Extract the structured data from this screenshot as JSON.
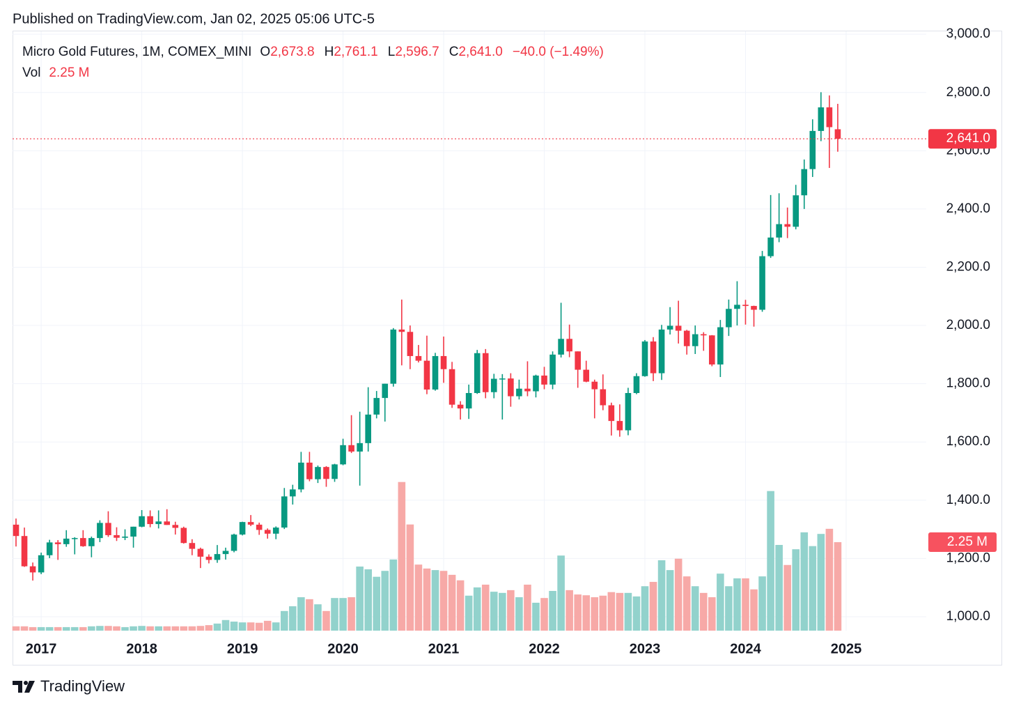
{
  "header": {
    "published": "Published on TradingView.com, Jan 02, 2025 05:06 UTC-5"
  },
  "footer": {
    "brand": "TradingView"
  },
  "chart_data": {
    "type": "candlestick",
    "title": "Micro Gold Futures, 1M, COMEX_MINI",
    "legend_keys": {
      "open": "O",
      "high": "H",
      "low": "L",
      "close": "C"
    },
    "legend": {
      "open": "2,673.8",
      "high": "2,761.1",
      "low": "2,596.7",
      "close": "2,641.0",
      "change": "−40.0 (−1.49%)"
    },
    "volume_title": "Vol",
    "volume_label": "2.25 M",
    "up_color": "#089981",
    "down_color": "#f23645",
    "volume_up_color": "#92d2cc",
    "volume_down_color": "#f7a9a7",
    "grid": true,
    "categories": [
      null,
      null,
      null,
      "2017",
      null,
      null,
      null,
      null,
      null,
      null,
      null,
      null,
      null,
      null,
      null,
      "2018",
      null,
      null,
      null,
      null,
      null,
      null,
      null,
      null,
      null,
      null,
      null,
      "2019",
      null,
      null,
      null,
      null,
      null,
      null,
      null,
      null,
      null,
      null,
      null,
      "2020",
      null,
      null,
      null,
      null,
      null,
      null,
      null,
      null,
      null,
      null,
      null,
      "2021",
      null,
      null,
      null,
      null,
      null,
      null,
      null,
      null,
      null,
      null,
      null,
      "2022",
      null,
      null,
      null,
      null,
      null,
      null,
      null,
      null,
      null,
      null,
      null,
      "2023",
      null,
      null,
      null,
      null,
      null,
      null,
      null,
      null,
      null,
      null,
      null,
      "2024",
      null,
      null,
      null,
      null,
      null,
      null,
      null,
      null,
      null,
      null,
      null,
      "2025"
    ],
    "open": [
      1316,
      1277,
      1173,
      1152,
      1211,
      1255,
      1249,
      1268,
      1270,
      1242,
      1270,
      1322,
      1280,
      1271,
      1275,
      1309,
      1345,
      1318,
      1327,
      1315,
      1305,
      1253,
      1233,
      1206,
      1195,
      1215,
      1226,
      1282,
      1325,
      1316,
      1298,
      1285,
      1306,
      1413,
      1437,
      1529,
      1472,
      1514,
      1473,
      1523,
      1589,
      1567,
      1596,
      1694,
      1751,
      1800,
      1986,
      1978,
      1895,
      1879,
      1780,
      1895,
      1850,
      1728,
      1715,
      1768,
      1905,
      1771,
      1817,
      1818,
      1757,
      1783,
      1774,
      1828,
      1797,
      1900,
      1954,
      1911,
      1848,
      1807,
      1781,
      1726,
      1672,
      1640,
      1768,
      1826,
      1945,
      1836,
      1986,
      1999,
      1982,
      1929,
      1970,
      1966,
      1866,
      1994,
      2057,
      2071,
      2067,
      2054,
      2238,
      2302,
      2348,
      2339,
      2447,
      2537,
      2668,
      2749,
      2673.8,
      null
    ],
    "high": [
      1337,
      1306,
      1186,
      1220,
      1264,
      1263,
      1297,
      1273,
      1297,
      1275,
      1331,
      1362,
      1307,
      1300,
      1309,
      1366,
      1365,
      1365,
      1369,
      1326,
      1309,
      1266,
      1237,
      1214,
      1246,
      1237,
      1285,
      1326,
      1349,
      1323,
      1303,
      1310,
      1442,
      1453,
      1566,
      1566,
      1519,
      1517,
      1525,
      1611,
      1692,
      1704,
      1788,
      1775,
      1800,
      1991,
      2089,
      2000,
      1933,
      1965,
      1906,
      1962,
      1875,
      1740,
      1797,
      1916,
      1919,
      1834,
      1833,
      1836,
      1814,
      1877,
      1831,
      1858,
      1911,
      2078,
      2003,
      1911,
      1879,
      1814,
      1832,
      1735,
      1729,
      1786,
      1836,
      1950,
      1960,
      2002,
      2063,
      2085,
      1985,
      2000,
      1977,
      1967,
      2019,
      2089,
      2152,
      2088,
      2068,
      2256,
      2448,
      2454,
      2405,
      2483,
      2570,
      2708,
      2801,
      2790,
      2761.1,
      null
    ],
    "low": [
      1241,
      1171,
      1124,
      1146,
      1201,
      1195,
      1240,
      1214,
      1240,
      1204,
      1256,
      1274,
      1260,
      1263,
      1237,
      1307,
      1307,
      1303,
      1315,
      1282,
      1251,
      1211,
      1167,
      1183,
      1185,
      1196,
      1221,
      1279,
      1311,
      1281,
      1268,
      1266,
      1301,
      1385,
      1427,
      1465,
      1459,
      1446,
      1463,
      1520,
      1562,
      1450,
      1567,
      1681,
      1670,
      1790,
      1863,
      1850,
      1873,
      1764,
      1776,
      1803,
      1717,
      1677,
      1679,
      1765,
      1750,
      1750,
      1677,
      1721,
      1746,
      1757,
      1753,
      1781,
      1781,
      1890,
      1891,
      1786,
      1805,
      1681,
      1709,
      1622,
      1618,
      1623,
      1764,
      1824,
      1809,
      1813,
      1969,
      1938,
      1900,
      1902,
      1913,
      1860,
      1823,
      1964,
      2000,
      2003,
      1996,
      2047,
      2232,
      2286,
      2300,
      2330,
      2400,
      2510,
      2633,
      2541,
      2596.7,
      null
    ],
    "close": [
      1277,
      1173,
      1152,
      1211,
      1255,
      1249,
      1268,
      1270,
      1242,
      1270,
      1322,
      1280,
      1271,
      1275,
      1309,
      1345,
      1318,
      1327,
      1315,
      1305,
      1253,
      1233,
      1206,
      1195,
      1215,
      1226,
      1282,
      1325,
      1316,
      1298,
      1285,
      1306,
      1413,
      1437,
      1529,
      1472,
      1514,
      1473,
      1523,
      1589,
      1567,
      1596,
      1694,
      1751,
      1800,
      1986,
      1978,
      1895,
      1879,
      1780,
      1895,
      1850,
      1728,
      1715,
      1768,
      1905,
      1771,
      1817,
      1818,
      1757,
      1783,
      1774,
      1828,
      1797,
      1900,
      1954,
      1911,
      1848,
      1807,
      1781,
      1726,
      1672,
      1640,
      1768,
      1826,
      1945,
      1836,
      1986,
      1999,
      1982,
      1929,
      1970,
      1966,
      1866,
      1994,
      2057,
      2071,
      2067,
      2054,
      2238,
      2302,
      2348,
      2339,
      2447,
      2537,
      2668,
      2749,
      2681,
      2641,
      null
    ],
    "volume": [
      0.11,
      0.11,
      0.09,
      0.09,
      0.09,
      0.09,
      0.09,
      0.09,
      0.09,
      0.11,
      0.12,
      0.12,
      0.11,
      0.09,
      0.11,
      0.12,
      0.11,
      0.11,
      0.11,
      0.11,
      0.11,
      0.11,
      0.12,
      0.14,
      0.18,
      0.27,
      0.23,
      0.21,
      0.21,
      0.2,
      0.25,
      0.21,
      0.5,
      0.62,
      0.85,
      0.8,
      0.67,
      0.5,
      0.83,
      0.83,
      0.85,
      1.63,
      1.56,
      1.37,
      1.52,
      1.81,
      3.78,
      2.7,
      1.68,
      1.58,
      1.54,
      1.52,
      1.42,
      1.28,
      0.89,
      1.1,
      1.17,
      0.99,
      0.96,
      1.03,
      0.85,
      1.17,
      0.71,
      0.83,
      1.01,
      1.91,
      1.03,
      0.92,
      0.9,
      0.85,
      0.89,
      0.98,
      0.96,
      0.96,
      0.87,
      1.13,
      1.24,
      1.79,
      1.54,
      1.83,
      1.38,
      1.13,
      0.96,
      0.85,
      1.45,
      1.13,
      1.33,
      1.33,
      1.05,
      1.38,
      3.55,
      2.18,
      1.67,
      2.07,
      2.5,
      2.15,
      2.46,
      2.59,
      2.25,
      null
    ],
    "ylim": [
      952,
      3010
    ],
    "yticks": [
      {
        "value": 1000,
        "label": "1,000.0"
      },
      {
        "value": 1200,
        "label": "1,200.0"
      },
      {
        "value": 1400,
        "label": "1,400.0"
      },
      {
        "value": 1600,
        "label": "1,600.0"
      },
      {
        "value": 1800,
        "label": "1,800.0"
      },
      {
        "value": 2000,
        "label": "2,000.0"
      },
      {
        "value": 2200,
        "label": "2,200.0"
      },
      {
        "value": 2400,
        "label": "2,400.0"
      },
      {
        "value": 2600,
        "label": "2,600.0"
      },
      {
        "value": 2800,
        "label": "2,800.0"
      },
      {
        "value": 3000,
        "label": "3,000.0"
      }
    ],
    "y2lim": [
      0,
      15.24
    ]
  }
}
